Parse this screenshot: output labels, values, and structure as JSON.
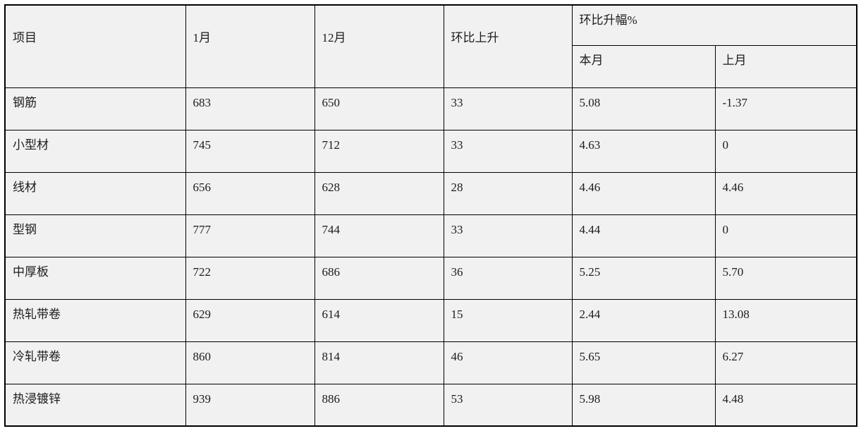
{
  "colors": {
    "page_bg": "#ffffff",
    "cell_bg": "#f1f1f1",
    "border": "#000000",
    "text": "#1c1c1c"
  },
  "table": {
    "headers": {
      "col_item": "项目",
      "col_jan": "1月",
      "col_dec": "12月",
      "col_mom_rise": "环比上升",
      "col_mom_pct_group": "环比升幅%",
      "col_this_month": "本月",
      "col_last_month": "上月"
    },
    "rows": [
      {
        "item": "钢筋",
        "jan": "683",
        "dec": "650",
        "rise": "33",
        "this_month": "5.08",
        "last_month": "-1.37"
      },
      {
        "item": "小型材",
        "jan": "745",
        "dec": "712",
        "rise": "33",
        "this_month": "4.63",
        "last_month": "0"
      },
      {
        "item": "线材",
        "jan": "656",
        "dec": "628",
        "rise": "28",
        "this_month": "4.46",
        "last_month": "4.46"
      },
      {
        "item": "型钢",
        "jan": "777",
        "dec": "744",
        "rise": "33",
        "this_month": "4.44",
        "last_month": "0"
      },
      {
        "item": "中厚板",
        "jan": "722",
        "dec": "686",
        "rise": "36",
        "this_month": "5.25",
        "last_month": "5.70"
      },
      {
        "item": "热轧带卷",
        "jan": "629",
        "dec": "614",
        "rise": "15",
        "this_month": "2.44",
        "last_month": "13.08"
      },
      {
        "item": "冷轧带卷",
        "jan": "860",
        "dec": "814",
        "rise": "46",
        "this_month": "5.65",
        "last_month": "6.27"
      },
      {
        "item": "热浸镀锌",
        "jan": "939",
        "dec": "886",
        "rise": "53",
        "this_month": "5.98",
        "last_month": "4.48"
      }
    ]
  }
}
